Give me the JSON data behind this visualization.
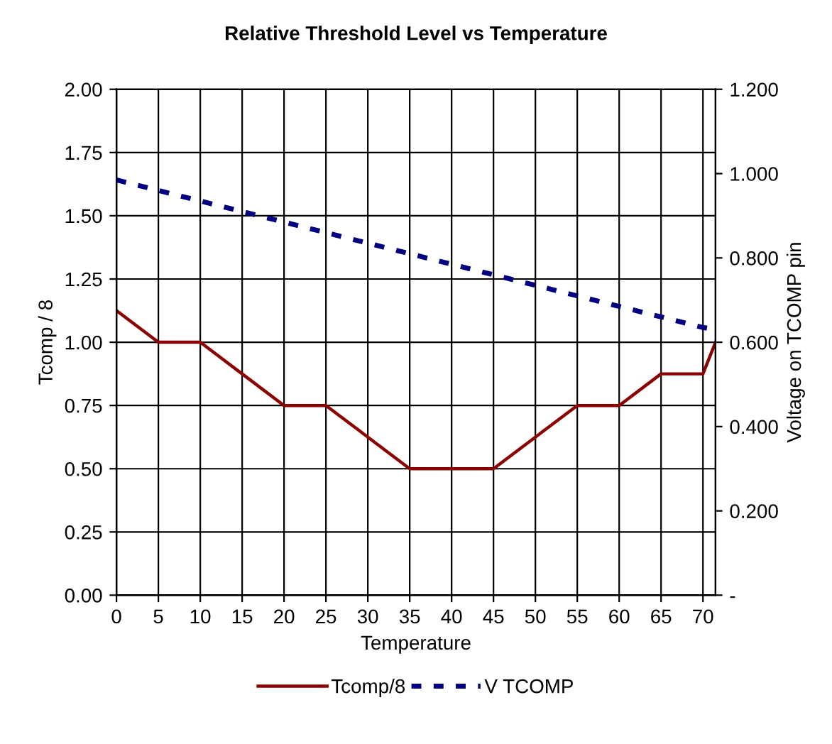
{
  "chart_data": {
    "type": "line",
    "title": "Relative Threshold Level vs Temperature",
    "xlabel": "Temperature",
    "ylabel": "Tcomp / 8",
    "y2label": "Voltage on TCOMP pin",
    "x": [
      0,
      5,
      10,
      15,
      20,
      25,
      30,
      35,
      40,
      45,
      50,
      55,
      60,
      65,
      70,
      71.5
    ],
    "series": [
      {
        "name": "Tcomp/8",
        "color": "#8b0000",
        "line_style": "solid",
        "values": [
          1.125,
          1.0,
          1.0,
          0.875,
          0.75,
          0.75,
          0.625,
          0.5,
          0.5,
          0.5,
          0.625,
          0.75,
          0.75,
          0.875,
          0.875,
          1.0
        ]
      },
      {
        "name": "V TCOMP",
        "color": "#000080",
        "line_style": "dashed",
        "axis": "y2",
        "values": [
          0.985,
          0.96,
          0.935,
          0.91,
          0.885,
          0.86,
          0.835,
          0.81,
          0.785,
          0.76,
          0.735,
          0.71,
          0.685,
          0.66,
          0.635,
          0.63
        ]
      }
    ],
    "xlim": [
      0,
      71.5
    ],
    "xticks": [
      0,
      5,
      10,
      15,
      20,
      25,
      30,
      35,
      40,
      45,
      50,
      55,
      60,
      65,
      70
    ],
    "ylim": [
      0,
      2
    ],
    "yticks": [
      {
        "value": 0,
        "label": "0.00"
      },
      {
        "value": 0.25,
        "label": "0.25"
      },
      {
        "value": 0.5,
        "label": "0.50"
      },
      {
        "value": 0.75,
        "label": "0.75"
      },
      {
        "value": 1,
        "label": "1.00"
      },
      {
        "value": 1.25,
        "label": "1.25"
      },
      {
        "value": 1.5,
        "label": "1.50"
      },
      {
        "value": 1.75,
        "label": "1.75"
      },
      {
        "value": 2,
        "label": "2.00"
      }
    ],
    "y2lim": [
      0,
      1.2
    ],
    "y2ticks": [
      {
        "value": 0,
        "label": "-"
      },
      {
        "value": 0.2,
        "label": "0.200"
      },
      {
        "value": 0.4,
        "label": "0.400"
      },
      {
        "value": 0.6,
        "label": "0.600"
      },
      {
        "value": 0.8,
        "label": "0.800"
      },
      {
        "value": 1.0,
        "label": "1.000"
      },
      {
        "value": 1.2,
        "label": "1.200"
      }
    ],
    "grid": true,
    "legend": "bottom",
    "marker": "none"
  }
}
